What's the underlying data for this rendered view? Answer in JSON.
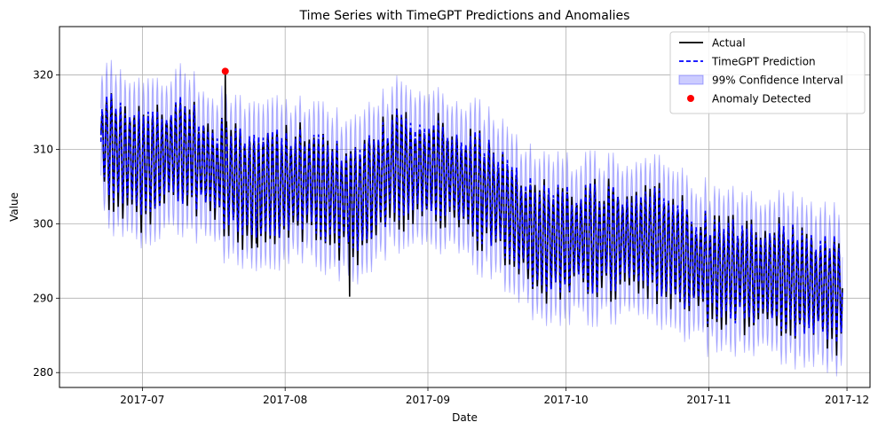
{
  "chart_data": {
    "type": "line",
    "title": "Time Series with TimeGPT Predictions and Anomalies",
    "xlabel": "Date",
    "ylabel": "Value",
    "grid": true,
    "legend_position": "top-right",
    "xlim": [
      "2017-06-13",
      "2017-12-06"
    ],
    "ylim": [
      278,
      326.5
    ],
    "x_ticks": [
      "2017-07-01",
      "2017-08-01",
      "2017-09-01",
      "2017-10-01",
      "2017-11-01",
      "2017-12-01"
    ],
    "x_tick_labels": [
      "2017-07",
      "2017-08",
      "2017-09",
      "2017-10",
      "2017-11",
      "2017-12"
    ],
    "y_ticks": [
      280,
      290,
      300,
      310,
      320
    ],
    "y_tick_labels": [
      "280",
      "290",
      "300",
      "310",
      "320"
    ],
    "date_range": [
      "2017-06-22",
      "2017-11-30"
    ],
    "cycles_per_day": 1,
    "daily_baseline": [
      {
        "date": "2017-06-22",
        "value": 311
      },
      {
        "date": "2017-07-01",
        "value": 308
      },
      {
        "date": "2017-07-10",
        "value": 310
      },
      {
        "date": "2017-07-17",
        "value": 307
      },
      {
        "date": "2017-07-25",
        "value": 305
      },
      {
        "date": "2017-08-05",
        "value": 306
      },
      {
        "date": "2017-08-16",
        "value": 303
      },
      {
        "date": "2017-08-25",
        "value": 308
      },
      {
        "date": "2017-09-05",
        "value": 307
      },
      {
        "date": "2017-09-15",
        "value": 304
      },
      {
        "date": "2017-09-25",
        "value": 298
      },
      {
        "date": "2017-10-05",
        "value": 298
      },
      {
        "date": "2017-10-20",
        "value": 298
      },
      {
        "date": "2017-11-01",
        "value": 294
      },
      {
        "date": "2017-11-15",
        "value": 293
      },
      {
        "date": "2017-11-30",
        "value": 291
      }
    ],
    "daily_amplitude": 6,
    "confidence_halfwidth": 4.5,
    "series": [
      {
        "name": "Actual",
        "color": "#000000",
        "style": "solid"
      },
      {
        "name": "TimeGPT Prediction",
        "color": "#0000ff",
        "style": "dashed"
      },
      {
        "name": "99% Confidence Interval",
        "color": "#0000ff",
        "style": "band",
        "opacity": 0.2
      },
      {
        "name": "Anomaly Detected",
        "color": "#ff0000",
        "style": "marker"
      }
    ],
    "anomalies": [
      {
        "date": "2017-07-19",
        "value": 320.5
      }
    ],
    "notable_dips": [
      {
        "date": "2017-08-15",
        "value": 290.2
      },
      {
        "date": "2017-07-26",
        "value": 296.8
      }
    ]
  }
}
